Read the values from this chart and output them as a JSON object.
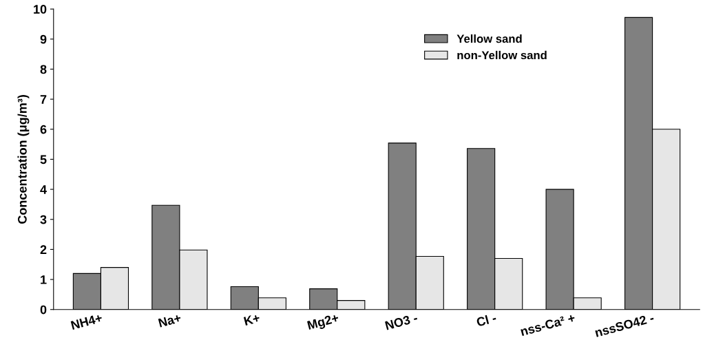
{
  "chart_data": {
    "type": "bar",
    "ylabel": "Concentration (μg/m³)",
    "categories": [
      "NH4+",
      "Na+",
      "K+",
      "Mg2+",
      "NO3 -",
      "Cl -",
      "nss-Ca² +",
      "nssSO42 -"
    ],
    "series": [
      {
        "name": "Yellow sand",
        "color": "#808080",
        "values": [
          1.2,
          3.47,
          0.76,
          0.69,
          5.54,
          5.36,
          4.0,
          9.72
        ]
      },
      {
        "name": "non-Yellow sand",
        "color": "#e6e6e6",
        "values": [
          1.4,
          1.98,
          0.39,
          0.3,
          1.77,
          1.7,
          0.39,
          6.0
        ]
      }
    ],
    "ylim": [
      0,
      10
    ],
    "yticks": [
      0,
      1,
      2,
      3,
      4,
      5,
      6,
      7,
      8,
      9,
      10
    ],
    "grid": false,
    "legend": "top right"
  }
}
